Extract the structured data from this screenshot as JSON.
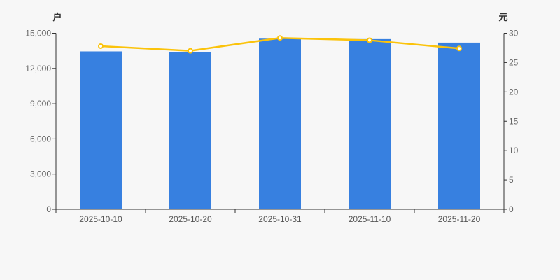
{
  "chart_data": {
    "type": "bar",
    "subtype": "dual-axis-bar-line",
    "title": "",
    "categories": [
      "2025-10-10",
      "2025-10-20",
      "2025-10-31",
      "2025-11-10",
      "2025-11-20"
    ],
    "series": [
      {
        "name": "holders-bar",
        "type": "bar",
        "axis": "left",
        "values": [
          13450,
          13420,
          14540,
          14500,
          14200
        ],
        "color": "#3780e0"
      },
      {
        "name": "price-line",
        "type": "line",
        "axis": "right",
        "values": [
          27.8,
          27.0,
          29.2,
          28.8,
          27.4
        ],
        "color": "#fbc30b",
        "marker_fill": "#ffffff"
      }
    ],
    "left_axis": {
      "name": "户",
      "min": 0,
      "max": 15000,
      "interval": 3000,
      "tick_labels": [
        "0",
        "3,000",
        "6,000",
        "9,000",
        "12,000",
        "15,000"
      ]
    },
    "right_axis": {
      "name": "元",
      "min": 0,
      "max": 30,
      "interval": 5,
      "tick_labels": [
        "0",
        "5",
        "10",
        "15",
        "20",
        "25",
        "30"
      ]
    },
    "grid": false,
    "legend": null,
    "styles": {
      "background": "#f7f7f7",
      "axis_line_color": "#333333",
      "numeric_tick_color": "#666666",
      "date_tick_color": "#555555",
      "bar_color": "#3780e0",
      "line_color": "#fbc30b"
    }
  }
}
